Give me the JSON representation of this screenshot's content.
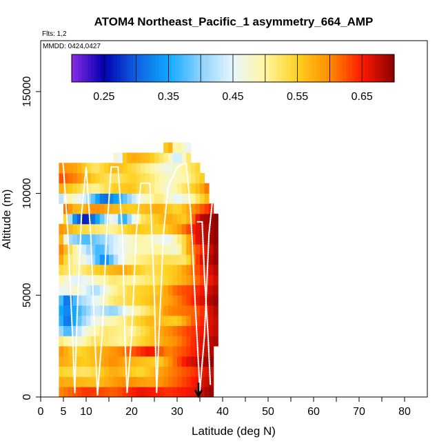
{
  "chart_data": {
    "type": "heatmap",
    "title": "ATOM4 Northeast_Pacific_1 asymmetry_664_AMP",
    "flights_label": "Flts: 1,2",
    "mmdd_label": "MMDD: 0424,0427",
    "xlabel": "Latitude (deg N)",
    "ylabel": "Altitude (m)",
    "xlim": [
      0,
      85
    ],
    "ylim": [
      0,
      17500
    ],
    "x_ticks": [
      0,
      5,
      10,
      20,
      30,
      40,
      50,
      60,
      70,
      80
    ],
    "y_ticks": [
      0,
      5000,
      10000,
      15000
    ],
    "colorbar": {
      "min": 0.2,
      "max": 0.7,
      "ticks": [
        "0.25",
        "0.35",
        "0.45",
        "0.55",
        "0.65"
      ],
      "tick_values": [
        0.25,
        0.35,
        0.45,
        0.55,
        0.65
      ],
      "stops": [
        {
          "v": 0.2,
          "color": "#8a2be2"
        },
        {
          "v": 0.25,
          "color": "#0000b0"
        },
        {
          "v": 0.3,
          "color": "#1060e0"
        },
        {
          "v": 0.35,
          "color": "#10a8ff"
        },
        {
          "v": 0.4,
          "color": "#8cd2ff"
        },
        {
          "v": 0.45,
          "color": "#e8f6ff"
        },
        {
          "v": 0.5,
          "color": "#fff6a0"
        },
        {
          "v": 0.55,
          "color": "#ffd020"
        },
        {
          "v": 0.6,
          "color": "#ff8c00"
        },
        {
          "v": 0.65,
          "color": "#ff1a00"
        },
        {
          "v": 0.7,
          "color": "#8b0000"
        }
      ]
    },
    "grid": false,
    "arrow_marker": {
      "x": 34.7,
      "y_from": 700,
      "y_to": 0
    },
    "cell_lat_width": 1.0,
    "cell_alt_height": 500,
    "rows": [
      {
        "alt": 250,
        "x0": 4,
        "x1": 38,
        "anchors": [
          [
            4,
            0.6
          ],
          [
            10,
            0.64
          ],
          [
            16,
            0.62
          ],
          [
            22,
            0.66
          ],
          [
            28,
            0.64
          ],
          [
            34,
            0.66
          ],
          [
            38,
            0.7
          ]
        ]
      },
      {
        "alt": 750,
        "x0": 4,
        "x1": 38,
        "anchors": [
          [
            4,
            0.58
          ],
          [
            12,
            0.56
          ],
          [
            18,
            0.6
          ],
          [
            24,
            0.58
          ],
          [
            30,
            0.62
          ],
          [
            36,
            0.67
          ],
          [
            38,
            0.69
          ]
        ]
      },
      {
        "alt": 1250,
        "x0": 4,
        "x1": 38,
        "anchors": [
          [
            4,
            0.55
          ],
          [
            10,
            0.52
          ],
          [
            16,
            0.58
          ],
          [
            22,
            0.54
          ],
          [
            28,
            0.6
          ],
          [
            34,
            0.64
          ],
          [
            38,
            0.68
          ]
        ]
      },
      {
        "alt": 1750,
        "x0": 4,
        "x1": 38,
        "anchors": [
          [
            4,
            0.58
          ],
          [
            10,
            0.55
          ],
          [
            16,
            0.6
          ],
          [
            20,
            0.57
          ],
          [
            26,
            0.55
          ],
          [
            32,
            0.66
          ],
          [
            38,
            0.7
          ]
        ]
      },
      {
        "alt": 2250,
        "x0": 4,
        "x1": 38,
        "anchors": [
          [
            4,
            0.6
          ],
          [
            8,
            0.54
          ],
          [
            14,
            0.58
          ],
          [
            20,
            0.62
          ],
          [
            24,
            0.66
          ],
          [
            28,
            0.6
          ],
          [
            34,
            0.65
          ],
          [
            38,
            0.69
          ]
        ]
      },
      {
        "alt": 2750,
        "x0": 4,
        "x1": 39,
        "anchors": [
          [
            4,
            0.52
          ],
          [
            8,
            0.47
          ],
          [
            12,
            0.53
          ],
          [
            18,
            0.5
          ],
          [
            24,
            0.56
          ],
          [
            30,
            0.6
          ],
          [
            35,
            0.66
          ],
          [
            39,
            0.69
          ]
        ]
      },
      {
        "alt": 3250,
        "x0": 4,
        "x1": 39,
        "anchors": [
          [
            4,
            0.42
          ],
          [
            6,
            0.36
          ],
          [
            10,
            0.47
          ],
          [
            14,
            0.52
          ],
          [
            20,
            0.5
          ],
          [
            26,
            0.58
          ],
          [
            32,
            0.63
          ],
          [
            39,
            0.68
          ]
        ]
      },
      {
        "alt": 3750,
        "x0": 4,
        "x1": 39,
        "anchors": [
          [
            4,
            0.38
          ],
          [
            6,
            0.3
          ],
          [
            9,
            0.4
          ],
          [
            12,
            0.46
          ],
          [
            18,
            0.51
          ],
          [
            24,
            0.57
          ],
          [
            30,
            0.55
          ],
          [
            34,
            0.63
          ],
          [
            39,
            0.68
          ]
        ]
      },
      {
        "alt": 4250,
        "x0": 4,
        "x1": 39,
        "anchors": [
          [
            4,
            0.36
          ],
          [
            6,
            0.32
          ],
          [
            9,
            0.38
          ],
          [
            12,
            0.44
          ],
          [
            16,
            0.4
          ],
          [
            20,
            0.48
          ],
          [
            24,
            0.53
          ],
          [
            28,
            0.6
          ],
          [
            34,
            0.62
          ],
          [
            39,
            0.69
          ]
        ]
      },
      {
        "alt": 4750,
        "x0": 4,
        "x1": 39,
        "anchors": [
          [
            4,
            0.4
          ],
          [
            6,
            0.29
          ],
          [
            8,
            0.4
          ],
          [
            12,
            0.45
          ],
          [
            16,
            0.52
          ],
          [
            22,
            0.55
          ],
          [
            28,
            0.58
          ],
          [
            34,
            0.65
          ],
          [
            39,
            0.7
          ]
        ]
      },
      {
        "alt": 5250,
        "x0": 4,
        "x1": 39,
        "anchors": [
          [
            4,
            0.45
          ],
          [
            8,
            0.48
          ],
          [
            12,
            0.41
          ],
          [
            16,
            0.5
          ],
          [
            20,
            0.54
          ],
          [
            26,
            0.56
          ],
          [
            30,
            0.62
          ],
          [
            34,
            0.64
          ],
          [
            39,
            0.69
          ]
        ]
      },
      {
        "alt": 5750,
        "x0": 4,
        "x1": 39,
        "anchors": [
          [
            4,
            0.5
          ],
          [
            8,
            0.44
          ],
          [
            12,
            0.48
          ],
          [
            16,
            0.52
          ],
          [
            20,
            0.5
          ],
          [
            26,
            0.53
          ],
          [
            32,
            0.58
          ],
          [
            39,
            0.68
          ]
        ]
      },
      {
        "alt": 6250,
        "x0": 4,
        "x1": 39,
        "anchors": [
          [
            4,
            0.54
          ],
          [
            8,
            0.5
          ],
          [
            12,
            0.55
          ],
          [
            18,
            0.58
          ],
          [
            24,
            0.53
          ],
          [
            30,
            0.56
          ],
          [
            34,
            0.62
          ],
          [
            39,
            0.69
          ]
        ]
      },
      {
        "alt": 6750,
        "x0": 4,
        "x1": 39,
        "anchors": [
          [
            4,
            0.6
          ],
          [
            6,
            0.52
          ],
          [
            10,
            0.46
          ],
          [
            14,
            0.32
          ],
          [
            17,
            0.44
          ],
          [
            20,
            0.5
          ],
          [
            26,
            0.53
          ],
          [
            32,
            0.52
          ],
          [
            35,
            0.66
          ],
          [
            39,
            0.7
          ]
        ]
      },
      {
        "alt": 7250,
        "x0": 4,
        "x1": 39,
        "anchors": [
          [
            4,
            0.62
          ],
          [
            6,
            0.55
          ],
          [
            10,
            0.42
          ],
          [
            13,
            0.36
          ],
          [
            16,
            0.44
          ],
          [
            20,
            0.48
          ],
          [
            26,
            0.5
          ],
          [
            30,
            0.47
          ],
          [
            33,
            0.6
          ],
          [
            39,
            0.7
          ]
        ]
      },
      {
        "alt": 7750,
        "x0": 4,
        "x1": 39,
        "anchors": [
          [
            4,
            0.62
          ],
          [
            6,
            0.42
          ],
          [
            10,
            0.37
          ],
          [
            14,
            0.41
          ],
          [
            18,
            0.46
          ],
          [
            22,
            0.5
          ],
          [
            28,
            0.45
          ],
          [
            32,
            0.55
          ],
          [
            34,
            0.66
          ],
          [
            39,
            0.7
          ]
        ]
      },
      {
        "alt": 8250,
        "x0": 4,
        "x1": 39,
        "anchors": [
          [
            4,
            0.6
          ],
          [
            8,
            0.55
          ],
          [
            12,
            0.52
          ],
          [
            16,
            0.5
          ],
          [
            20,
            0.56
          ],
          [
            26,
            0.54
          ],
          [
            30,
            0.58
          ],
          [
            34,
            0.66
          ],
          [
            39,
            0.7
          ]
        ]
      },
      {
        "alt": 8750,
        "x0": 5,
        "x1": 39,
        "anchors": [
          [
            5,
            0.61
          ],
          [
            7,
            0.35
          ],
          [
            10,
            0.25
          ],
          [
            12,
            0.33
          ],
          [
            16,
            0.48
          ],
          [
            18,
            0.34
          ],
          [
            22,
            0.52
          ],
          [
            28,
            0.58
          ],
          [
            32,
            0.55
          ],
          [
            35,
            0.68
          ],
          [
            39,
            0.7
          ]
        ]
      },
      {
        "alt": 9250,
        "x0": 5,
        "x1": 38,
        "anchors": [
          [
            5,
            0.62
          ],
          [
            8,
            0.56
          ],
          [
            12,
            0.6
          ],
          [
            16,
            0.57
          ],
          [
            20,
            0.55
          ],
          [
            26,
            0.58
          ],
          [
            30,
            0.54
          ],
          [
            34,
            0.6
          ],
          [
            38,
            0.66
          ]
        ]
      },
      {
        "alt": 9750,
        "x0": 4,
        "x1": 37,
        "anchors": [
          [
            4,
            0.4
          ],
          [
            6,
            0.5
          ],
          [
            10,
            0.43
          ],
          [
            14,
            0.3
          ],
          [
            18,
            0.37
          ],
          [
            22,
            0.47
          ],
          [
            26,
            0.52
          ],
          [
            30,
            0.45
          ],
          [
            33,
            0.49
          ],
          [
            37,
            0.58
          ]
        ]
      },
      {
        "alt": 10250,
        "x0": 4,
        "x1": 37,
        "anchors": [
          [
            4,
            0.58
          ],
          [
            8,
            0.54
          ],
          [
            12,
            0.5
          ],
          [
            16,
            0.55
          ],
          [
            20,
            0.56
          ],
          [
            24,
            0.52
          ],
          [
            28,
            0.47
          ],
          [
            32,
            0.53
          ],
          [
            35,
            0.57
          ],
          [
            37,
            0.62
          ]
        ]
      },
      {
        "alt": 10750,
        "x0": 4,
        "x1": 36,
        "anchors": [
          [
            4,
            0.63
          ],
          [
            8,
            0.6
          ],
          [
            12,
            0.55
          ],
          [
            16,
            0.52
          ],
          [
            20,
            0.55
          ],
          [
            24,
            0.52
          ],
          [
            28,
            0.48
          ],
          [
            32,
            0.5
          ],
          [
            36,
            0.56
          ]
        ]
      },
      {
        "alt": 11250,
        "x0": 4,
        "x1": 35,
        "anchors": [
          [
            4,
            0.6
          ],
          [
            8,
            0.58
          ],
          [
            12,
            0.52
          ],
          [
            16,
            0.57
          ],
          [
            20,
            0.54
          ],
          [
            24,
            0.5
          ],
          [
            28,
            0.46
          ],
          [
            32,
            0.51
          ],
          [
            35,
            0.55
          ]
        ]
      },
      {
        "alt": 11750,
        "x0": 16,
        "x1": 33,
        "anchors": [
          [
            16,
            0.6
          ],
          [
            17,
            0.35
          ],
          [
            18,
            0.55
          ],
          [
            20,
            0.58
          ],
          [
            24,
            0.56
          ],
          [
            28,
            0.5
          ],
          [
            30,
            0.42
          ],
          [
            33,
            0.54
          ]
        ]
      },
      {
        "alt": 12250,
        "x0": 27,
        "x1": 33,
        "anchors": [
          [
            27,
            0.55
          ],
          [
            29,
            0.58
          ],
          [
            30,
            0.4
          ],
          [
            31,
            0.6
          ],
          [
            32,
            0.35
          ],
          [
            33,
            0.56
          ]
        ]
      }
    ],
    "flight_tracks": [
      [
        [
          4.5,
          12200
        ],
        [
          5,
          11300
        ],
        [
          6,
          8000
        ],
        [
          7,
          3000
        ],
        [
          7.5,
          200
        ],
        [
          8,
          4000
        ],
        [
          9,
          9000
        ],
        [
          10,
          11300
        ],
        [
          11,
          8000
        ],
        [
          12,
          2500
        ],
        [
          12.5,
          100
        ],
        [
          13.5,
          3000
        ],
        [
          14.5,
          8000
        ],
        [
          15.5,
          11300
        ],
        [
          17,
          11300
        ],
        [
          18,
          8000
        ],
        [
          18.5,
          3000
        ],
        [
          19,
          200
        ],
        [
          20,
          3000
        ],
        [
          21,
          8000
        ],
        [
          22,
          10500
        ],
        [
          24,
          10500
        ],
        [
          25,
          5000
        ],
        [
          25.5,
          200
        ],
        [
          26,
          3000
        ],
        [
          27,
          8000
        ],
        [
          28,
          10300
        ],
        [
          30,
          11300
        ],
        [
          32,
          11500
        ],
        [
          33,
          9000
        ],
        [
          34,
          4500
        ],
        [
          35,
          300
        ],
        [
          36,
          3000
        ],
        [
          37,
          8000
        ],
        [
          38,
          10200
        ]
      ],
      [
        [
          34.5,
          8600
        ],
        [
          35.5,
          8600
        ],
        [
          36,
          6000
        ],
        [
          36.8,
          3000
        ],
        [
          37.3,
          600
        ]
      ]
    ]
  }
}
